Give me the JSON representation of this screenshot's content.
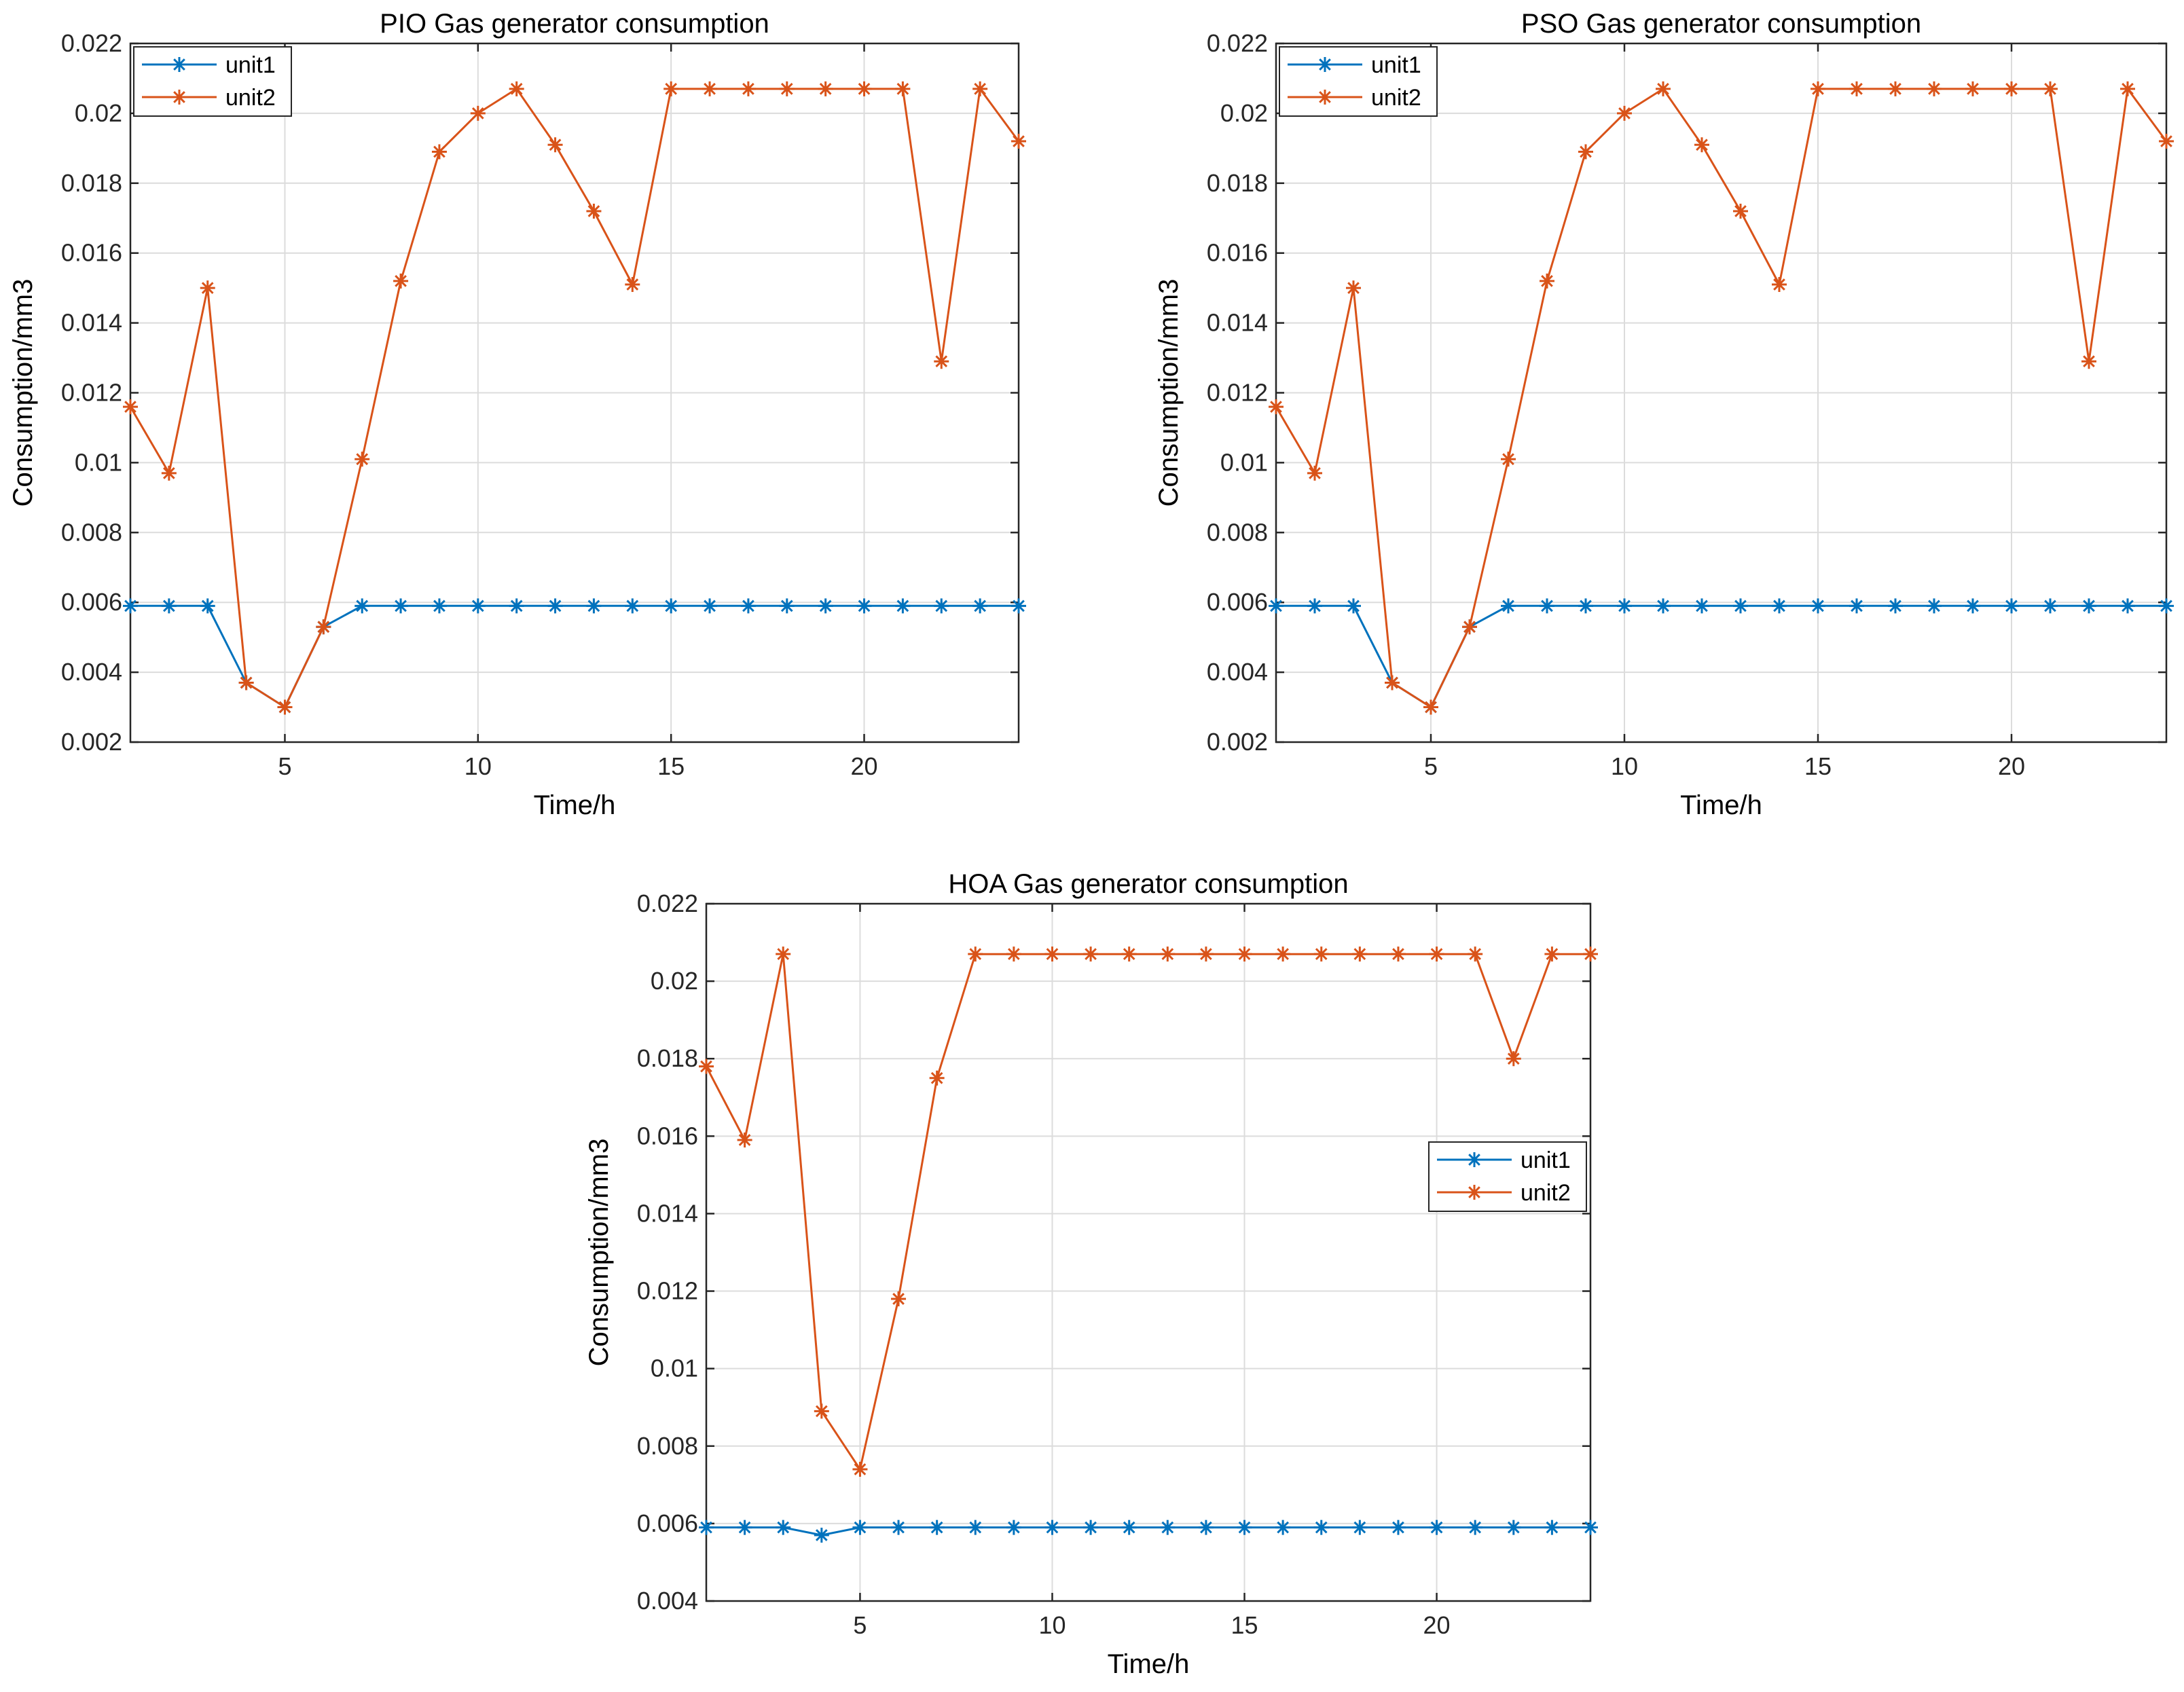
{
  "colors": {
    "unit1": "#0072BD",
    "unit2": "#D95319",
    "grid": "#DCDCDC",
    "axes": "#262626"
  },
  "chart_data": [
    {
      "type": "line",
      "title": "PIO Gas generator consumption",
      "xlabel": "Time/h",
      "ylabel": "Consumption/mm3",
      "xlim": [
        1,
        24
      ],
      "ylim": [
        0.002,
        0.022
      ],
      "xticks": [
        5,
        10,
        15,
        20
      ],
      "yticks": [
        0.002,
        0.004,
        0.006,
        0.008,
        0.01,
        0.012,
        0.014,
        0.016,
        0.018,
        0.02,
        0.022
      ],
      "ytick_labels": [
        "0.002",
        "0.004",
        "0.006",
        "0.008",
        "0.01",
        "0.012",
        "0.014",
        "0.016",
        "0.018",
        "0.02",
        "0.022"
      ],
      "grid": true,
      "legend": "top-left",
      "x": [
        1,
        2,
        3,
        4,
        5,
        6,
        7,
        8,
        9,
        10,
        11,
        12,
        13,
        14,
        15,
        16,
        17,
        18,
        19,
        20,
        21,
        22,
        23,
        24
      ],
      "series": [
        {
          "name": "unit1",
          "values": [
            0.0059,
            0.0059,
            0.0059,
            0.0037,
            0.003,
            0.0053,
            0.0059,
            0.0059,
            0.0059,
            0.0059,
            0.0059,
            0.0059,
            0.0059,
            0.0059,
            0.0059,
            0.0059,
            0.0059,
            0.0059,
            0.0059,
            0.0059,
            0.0059,
            0.0059,
            0.0059,
            0.0059
          ]
        },
        {
          "name": "unit2",
          "values": [
            0.0116,
            0.0097,
            0.015,
            0.0037,
            0.003,
            0.0053,
            0.0101,
            0.0152,
            0.0189,
            0.02,
            0.0207,
            0.0191,
            0.0172,
            0.0151,
            0.0207,
            0.0207,
            0.0207,
            0.0207,
            0.0207,
            0.0207,
            0.0207,
            0.0129,
            0.0207,
            0.0192
          ]
        }
      ]
    },
    {
      "type": "line",
      "title": "PSO Gas generator consumption",
      "xlabel": "Time/h",
      "ylabel": "Consumption/mm3",
      "xlim": [
        1,
        24
      ],
      "ylim": [
        0.002,
        0.022
      ],
      "xticks": [
        5,
        10,
        15,
        20
      ],
      "yticks": [
        0.002,
        0.004,
        0.006,
        0.008,
        0.01,
        0.012,
        0.014,
        0.016,
        0.018,
        0.02,
        0.022
      ],
      "ytick_labels": [
        "0.002",
        "0.004",
        "0.006",
        "0.008",
        "0.01",
        "0.012",
        "0.014",
        "0.016",
        "0.018",
        "0.02",
        "0.022"
      ],
      "grid": true,
      "legend": "top-left",
      "x": [
        1,
        2,
        3,
        4,
        5,
        6,
        7,
        8,
        9,
        10,
        11,
        12,
        13,
        14,
        15,
        16,
        17,
        18,
        19,
        20,
        21,
        22,
        23,
        24
      ],
      "series": [
        {
          "name": "unit1",
          "values": [
            0.0059,
            0.0059,
            0.0059,
            0.0037,
            0.003,
            0.0053,
            0.0059,
            0.0059,
            0.0059,
            0.0059,
            0.0059,
            0.0059,
            0.0059,
            0.0059,
            0.0059,
            0.0059,
            0.0059,
            0.0059,
            0.0059,
            0.0059,
            0.0059,
            0.0059,
            0.0059,
            0.0059
          ]
        },
        {
          "name": "unit2",
          "values": [
            0.0116,
            0.0097,
            0.015,
            0.0037,
            0.003,
            0.0053,
            0.0101,
            0.0152,
            0.0189,
            0.02,
            0.0207,
            0.0191,
            0.0172,
            0.0151,
            0.0207,
            0.0207,
            0.0207,
            0.0207,
            0.0207,
            0.0207,
            0.0207,
            0.0129,
            0.0207,
            0.0192
          ]
        }
      ]
    },
    {
      "type": "line",
      "title": "HOA Gas generator consumption",
      "xlabel": "Time/h",
      "ylabel": "Consumption/mm3",
      "xlim": [
        1,
        24
      ],
      "ylim": [
        0.004,
        0.022
      ],
      "xticks": [
        5,
        10,
        15,
        20
      ],
      "yticks": [
        0.004,
        0.006,
        0.008,
        0.01,
        0.012,
        0.014,
        0.016,
        0.018,
        0.02,
        0.022
      ],
      "ytick_labels": [
        "0.004",
        "0.006",
        "0.008",
        "0.01",
        "0.012",
        "0.014",
        "0.016",
        "0.018",
        "0.02",
        "0.022"
      ],
      "grid": true,
      "legend": "right",
      "x": [
        1,
        2,
        3,
        4,
        5,
        6,
        7,
        8,
        9,
        10,
        11,
        12,
        13,
        14,
        15,
        16,
        17,
        18,
        19,
        20,
        21,
        22,
        23,
        24
      ],
      "series": [
        {
          "name": "unit1",
          "values": [
            0.0059,
            0.0059,
            0.0059,
            0.0057,
            0.0059,
            0.0059,
            0.0059,
            0.0059,
            0.0059,
            0.0059,
            0.0059,
            0.0059,
            0.0059,
            0.0059,
            0.0059,
            0.0059,
            0.0059,
            0.0059,
            0.0059,
            0.0059,
            0.0059,
            0.0059,
            0.0059,
            0.0059
          ]
        },
        {
          "name": "unit2",
          "values": [
            0.0178,
            0.0159,
            0.0207,
            0.0089,
            0.0074,
            0.0118,
            0.0175,
            0.0207,
            0.0207,
            0.0207,
            0.0207,
            0.0207,
            0.0207,
            0.0207,
            0.0207,
            0.0207,
            0.0207,
            0.0207,
            0.0207,
            0.0207,
            0.0207,
            0.018,
            0.0207,
            0.0207
          ]
        }
      ]
    }
  ]
}
